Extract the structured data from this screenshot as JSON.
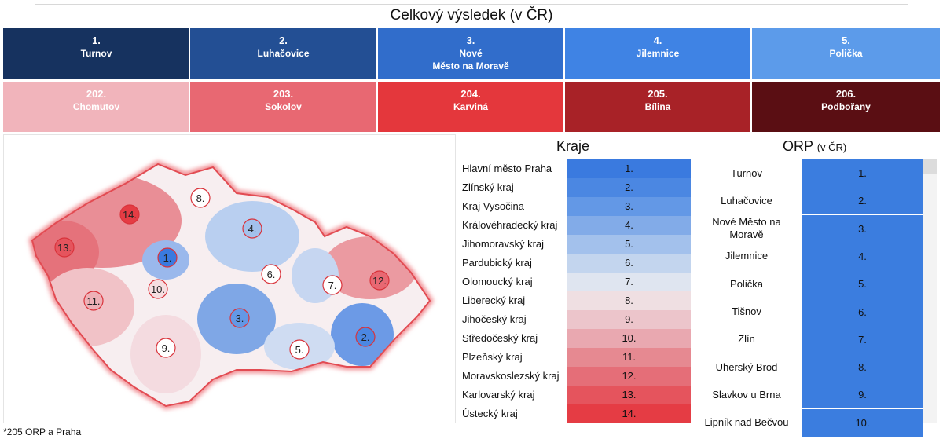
{
  "title": "Celkový výsledek (v ČR)",
  "top": [
    {
      "rank": "1.",
      "name": "Turnov",
      "color": "#16325f"
    },
    {
      "rank": "2.",
      "name": "Luhačovice",
      "color": "#234f94"
    },
    {
      "rank": "3.",
      "name": "Nové\nMěsto na Moravě",
      "color": "#316dcb"
    },
    {
      "rank": "4.",
      "name": "Jilemnice",
      "color": "#3f83e4"
    },
    {
      "rank": "5.",
      "name": "Polička",
      "color": "#5c9bea"
    }
  ],
  "bottom": [
    {
      "rank": "202.",
      "name": "Chomutov",
      "color": "#f1b4bb"
    },
    {
      "rank": "203.",
      "name": "Sokolov",
      "color": "#e86872"
    },
    {
      "rank": "204.",
      "name": "Karviná",
      "color": "#e4373c"
    },
    {
      "rank": "205.",
      "name": "Bílina",
      "color": "#a82227"
    },
    {
      "rank": "206.",
      "name": "Podbořany",
      "color": "#5a0e13"
    }
  ],
  "kraje": {
    "title": "Kraje",
    "rows": [
      {
        "name": "Hlavní město Praha",
        "rank": "1.",
        "color": "#3a7adf"
      },
      {
        "name": "Zlínský kraj",
        "rank": "2.",
        "color": "#4b87e2"
      },
      {
        "name": "Kraj Vysočina",
        "rank": "3.",
        "color": "#6398e6"
      },
      {
        "name": "Královéhradecký kraj",
        "rank": "4.",
        "color": "#82abe8"
      },
      {
        "name": "Jihomoravský kraj",
        "rank": "5.",
        "color": "#a3c1ec"
      },
      {
        "name": "Pardubický kraj",
        "rank": "6.",
        "color": "#c3d5ee"
      },
      {
        "name": "Olomoucký kraj",
        "rank": "7.",
        "color": "#dfe5f0"
      },
      {
        "name": "Liberecký kraj",
        "rank": "8.",
        "color": "#efdfe2"
      },
      {
        "name": "Jihočeský kraj",
        "rank": "9.",
        "color": "#ecc5cb"
      },
      {
        "name": "Středočeský kraj",
        "rank": "10.",
        "color": "#e9a8b0"
      },
      {
        "name": "Plzeňský kraj",
        "rank": "11.",
        "color": "#e68991"
      },
      {
        "name": "Moravskoslezský kraj",
        "rank": "12.",
        "color": "#e56e78"
      },
      {
        "name": "Karlovarský kraj",
        "rank": "13.",
        "color": "#e5545d"
      },
      {
        "name": "Ústecký kraj",
        "rank": "14.",
        "color": "#e53c44"
      }
    ]
  },
  "orp": {
    "title": "ORP",
    "subtitle": "(v ČR)",
    "rows": [
      {
        "name": "Turnov",
        "rank": "1."
      },
      {
        "name": "Luhačovice",
        "rank": "2."
      },
      {
        "name": "Nové Město na Moravě",
        "rank": "3."
      },
      {
        "name": "Jilemnice",
        "rank": "4."
      },
      {
        "name": "Polička",
        "rank": "5."
      },
      {
        "name": "Tišnov",
        "rank": "6."
      },
      {
        "name": "Zlín",
        "rank": "7."
      },
      {
        "name": "Uherský Brod",
        "rank": "8."
      },
      {
        "name": "Slavkov u Brna",
        "rank": "9."
      },
      {
        "name": "Lipník nad Bečvou",
        "rank": "10."
      }
    ]
  },
  "map_markers": [
    {
      "label": "1.",
      "color": "#3a7adf"
    },
    {
      "label": "2.",
      "color": "#4b87e2"
    },
    {
      "label": "3.",
      "color": "#6398e6"
    },
    {
      "label": "4.",
      "color": "#a3c1ec"
    },
    {
      "label": "5.",
      "color": "#ffffff"
    },
    {
      "label": "6.",
      "color": "#ffffff"
    },
    {
      "label": "7.",
      "color": "#ffffff"
    },
    {
      "label": "8.",
      "color": "#ffffff"
    },
    {
      "label": "9.",
      "color": "#ffffff"
    },
    {
      "label": "10.",
      "color": "#f6dde0"
    },
    {
      "label": "11.",
      "color": "#eeb1b7"
    },
    {
      "label": "12.",
      "color": "#e86872"
    },
    {
      "label": "13.",
      "color": "#e5545d"
    },
    {
      "label": "14.",
      "color": "#e53c44"
    }
  ],
  "footnote": "*205 ORP a Praha"
}
